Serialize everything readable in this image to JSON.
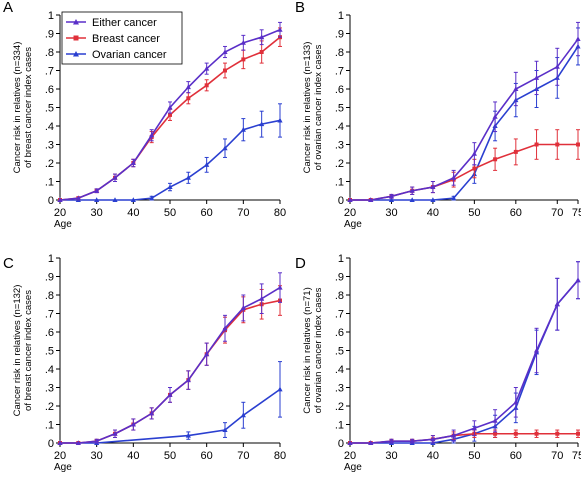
{
  "colors": {
    "either": "#5a2fc8",
    "breast": "#e0303a",
    "ovarian": "#2a3fd0",
    "axis": "#000000"
  },
  "legend_labels": [
    "Either cancer",
    "Breast cancer",
    "Ovarian cancer"
  ],
  "chart_data": [
    {
      "panel": "A",
      "type": "line",
      "ylabel": "Cancer risk in relatives (n=334) of breast cancer index cases",
      "xlabel": "Age",
      "xlim": [
        20,
        80
      ],
      "ylim": [
        0,
        1
      ],
      "xticks": [
        20,
        30,
        40,
        50,
        60,
        70,
        80
      ],
      "yticks": [
        0,
        0.1,
        0.2,
        0.3,
        0.4,
        0.5,
        0.6,
        0.7,
        0.8,
        0.9,
        1
      ],
      "ytick_labels": [
        "0",
        ".1",
        ".2",
        ".3",
        ".4",
        ".5",
        ".6",
        ".7",
        ".8",
        ".9",
        "1"
      ],
      "legend": "top-left",
      "series": [
        {
          "name": "Either cancer",
          "key": "either",
          "x": [
            20,
            25,
            30,
            35,
            40,
            45,
            50,
            55,
            60,
            65,
            70,
            75,
            80
          ],
          "y": [
            0,
            0.01,
            0.05,
            0.12,
            0.2,
            0.35,
            0.5,
            0.61,
            0.71,
            0.8,
            0.85,
            0.88,
            0.92
          ],
          "err": [
            0,
            0,
            0.01,
            0.02,
            0.02,
            0.03,
            0.03,
            0.03,
            0.03,
            0.03,
            0.04,
            0.04,
            0.04
          ]
        },
        {
          "name": "Breast cancer",
          "key": "breast",
          "x": [
            20,
            25,
            30,
            35,
            40,
            45,
            50,
            55,
            60,
            65,
            70,
            75,
            80
          ],
          "y": [
            0,
            0.01,
            0.05,
            0.12,
            0.2,
            0.34,
            0.46,
            0.55,
            0.62,
            0.7,
            0.76,
            0.8,
            0.88
          ],
          "err": [
            0,
            0,
            0.01,
            0.02,
            0.02,
            0.03,
            0.03,
            0.03,
            0.03,
            0.04,
            0.05,
            0.06,
            0.05
          ]
        },
        {
          "name": "Ovarian cancer",
          "key": "ovarian",
          "x": [
            20,
            25,
            30,
            35,
            40,
            45,
            50,
            55,
            60,
            65,
            70,
            75,
            80
          ],
          "y": [
            0,
            0,
            0,
            0,
            0,
            0.01,
            0.07,
            0.12,
            0.19,
            0.28,
            0.38,
            0.41,
            0.43
          ],
          "err": [
            0,
            0,
            0,
            0,
            0,
            0.01,
            0.02,
            0.03,
            0.04,
            0.05,
            0.06,
            0.07,
            0.09
          ]
        }
      ]
    },
    {
      "panel": "B",
      "type": "line",
      "ylabel": "Cancer risk in relatives (n=133) of ovarian cancer index cases",
      "xlabel": "Age",
      "xlim": [
        20,
        75
      ],
      "ylim": [
        0,
        1
      ],
      "xticks": [
        20,
        30,
        40,
        50,
        60,
        70,
        75
      ],
      "yticks": [
        0,
        0.1,
        0.2,
        0.3,
        0.4,
        0.5,
        0.6,
        0.7,
        0.8,
        0.9,
        1
      ],
      "ytick_labels": [
        "0",
        ".1",
        ".2",
        ".3",
        ".4",
        ".5",
        ".6",
        ".7",
        ".8",
        ".9",
        "1"
      ],
      "series": [
        {
          "name": "Either cancer",
          "key": "either",
          "x": [
            20,
            25,
            30,
            35,
            40,
            45,
            50,
            55,
            60,
            65,
            70,
            75
          ],
          "y": [
            0,
            0,
            0.02,
            0.05,
            0.07,
            0.12,
            0.25,
            0.45,
            0.6,
            0.66,
            0.72,
            0.87
          ],
          "err": [
            0,
            0,
            0.01,
            0.02,
            0.03,
            0.04,
            0.06,
            0.08,
            0.09,
            0.09,
            0.1,
            0.09
          ]
        },
        {
          "name": "Breast cancer",
          "key": "breast",
          "x": [
            20,
            25,
            30,
            35,
            40,
            45,
            50,
            55,
            60,
            65,
            70,
            75
          ],
          "y": [
            0,
            0,
            0.02,
            0.05,
            0.07,
            0.11,
            0.17,
            0.22,
            0.26,
            0.3,
            0.3,
            0.3
          ],
          "err": [
            0,
            0,
            0.01,
            0.02,
            0.03,
            0.04,
            0.05,
            0.06,
            0.07,
            0.08,
            0.08,
            0.08
          ]
        },
        {
          "name": "Ovarian cancer",
          "key": "ovarian",
          "x": [
            20,
            25,
            30,
            35,
            40,
            45,
            50,
            55,
            60,
            65,
            70,
            75
          ],
          "y": [
            0,
            0,
            0,
            0,
            0,
            0.01,
            0.14,
            0.4,
            0.54,
            0.6,
            0.66,
            0.83
          ],
          "err": [
            0,
            0,
            0,
            0,
            0,
            0.01,
            0.05,
            0.08,
            0.09,
            0.1,
            0.11,
            0.1
          ]
        }
      ]
    },
    {
      "panel": "C",
      "type": "line",
      "ylabel": "Cancer risk in relatives (n=132) of breast cancer index cases",
      "xlabel": "Age",
      "xlim": [
        20,
        80
      ],
      "ylim": [
        0,
        1
      ],
      "xticks": [
        20,
        30,
        40,
        50,
        60,
        70,
        80
      ],
      "yticks": [
        0,
        0.1,
        0.2,
        0.3,
        0.4,
        0.5,
        0.6,
        0.7,
        0.8,
        0.9,
        1
      ],
      "ytick_labels": [
        "0",
        ".1",
        ".2",
        ".3",
        ".4",
        ".5",
        ".6",
        ".7",
        ".8",
        ".9",
        "1"
      ],
      "series": [
        {
          "name": "Either cancer",
          "key": "either",
          "x": [
            20,
            25,
            30,
            35,
            40,
            45,
            50,
            55,
            60,
            65,
            70,
            75,
            80
          ],
          "y": [
            0,
            0,
            0.01,
            0.05,
            0.1,
            0.16,
            0.26,
            0.34,
            0.48,
            0.62,
            0.73,
            0.78,
            0.84
          ],
          "err": [
            0,
            0,
            0.01,
            0.02,
            0.03,
            0.03,
            0.04,
            0.05,
            0.06,
            0.07,
            0.07,
            0.08,
            0.08
          ]
        },
        {
          "name": "Breast cancer",
          "key": "breast",
          "x": [
            20,
            25,
            30,
            35,
            40,
            45,
            50,
            55,
            60,
            65,
            70,
            75,
            80
          ],
          "y": [
            0,
            0,
            0.01,
            0.05,
            0.1,
            0.16,
            0.26,
            0.34,
            0.48,
            0.61,
            0.72,
            0.75,
            0.77
          ],
          "err": [
            0,
            0,
            0.01,
            0.02,
            0.03,
            0.03,
            0.04,
            0.05,
            0.06,
            0.07,
            0.07,
            0.08,
            0.08
          ]
        },
        {
          "name": "Ovarian cancer",
          "key": "ovarian",
          "x": [
            20,
            30,
            55,
            65,
            70,
            80
          ],
          "y": [
            0,
            0,
            0.04,
            0.07,
            0.15,
            0.29
          ],
          "err": [
            0,
            0,
            0.02,
            0.04,
            0.07,
            0.15
          ]
        }
      ]
    },
    {
      "panel": "D",
      "type": "line",
      "ylabel": "Cancer risk in relatives (n=71) of ovarian cancer index cases",
      "xlabel": "Age",
      "xlim": [
        20,
        75
      ],
      "ylim": [
        0,
        1
      ],
      "xticks": [
        20,
        30,
        40,
        50,
        60,
        70,
        75
      ],
      "yticks": [
        0,
        0.1,
        0.2,
        0.3,
        0.4,
        0.5,
        0.6,
        0.7,
        0.8,
        0.9,
        1
      ],
      "ytick_labels": [
        "0",
        ".1",
        ".2",
        ".3",
        ".4",
        ".5",
        ".6",
        ".7",
        ".8",
        ".9",
        "1"
      ],
      "series": [
        {
          "name": "Either cancer",
          "key": "either",
          "x": [
            20,
            25,
            30,
            35,
            40,
            45,
            50,
            55,
            60,
            65,
            70,
            75
          ],
          "y": [
            0,
            0,
            0.01,
            0.01,
            0.02,
            0.04,
            0.08,
            0.12,
            0.22,
            0.5,
            0.75,
            0.88
          ],
          "err": [
            0,
            0,
            0.01,
            0.01,
            0.02,
            0.03,
            0.04,
            0.06,
            0.08,
            0.12,
            0.14,
            0.1
          ]
        },
        {
          "name": "Breast cancer",
          "key": "breast",
          "x": [
            20,
            25,
            30,
            35,
            40,
            45,
            50,
            55,
            60,
            65,
            70,
            75
          ],
          "y": [
            0,
            0,
            0.01,
            0.01,
            0.02,
            0.04,
            0.05,
            0.05,
            0.05,
            0.05,
            0.05,
            0.05
          ],
          "err": [
            0,
            0,
            0.01,
            0.01,
            0.02,
            0.02,
            0.02,
            0.02,
            0.02,
            0.02,
            0.02,
            0.02
          ]
        },
        {
          "name": "Ovarian cancer",
          "key": "ovarian",
          "x": [
            20,
            25,
            30,
            35,
            40,
            45,
            50,
            55,
            60,
            65,
            70,
            75
          ],
          "y": [
            0,
            0,
            0,
            0,
            0,
            0.02,
            0.05,
            0.09,
            0.19,
            0.49,
            0.75,
            0.88
          ],
          "err": [
            0,
            0,
            0,
            0,
            0,
            0.02,
            0.04,
            0.06,
            0.08,
            0.12,
            0.14,
            0.1
          ]
        }
      ]
    }
  ]
}
